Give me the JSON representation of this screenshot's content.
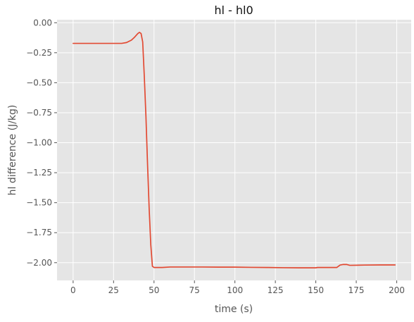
{
  "chart_data": {
    "type": "line",
    "title": "hl - hl0",
    "xlabel": "time (s)",
    "ylabel": "hl difference (J/kg)",
    "xlim": [
      -9.95,
      208.95
    ],
    "ylim": [
      -2.148,
      0.025
    ],
    "xticks": [
      0,
      25,
      50,
      75,
      100,
      125,
      150,
      175,
      200
    ],
    "xtick_labels": [
      "0",
      "25",
      "50",
      "75",
      "100",
      "125",
      "150",
      "175",
      "200"
    ],
    "yticks": [
      0.0,
      -0.25,
      -0.5,
      -0.75,
      -1.0,
      -1.25,
      -1.5,
      -1.75,
      -2.0
    ],
    "ytick_labels": [
      "0.00",
      "−0.25",
      "−0.50",
      "−0.75",
      "−1.00",
      "−1.25",
      "−1.50",
      "−1.75",
      "−2.00"
    ],
    "grid": true,
    "background": "#e5e5e5",
    "grid_color": "#ffffff",
    "series": [
      {
        "color": "#e24a33",
        "x": [
          0,
          10,
          20,
          30,
          33,
          36,
          38,
          40,
          41,
          42,
          43,
          44,
          45,
          46,
          47,
          48,
          49,
          50,
          52,
          55,
          60,
          70,
          80,
          90,
          100,
          110,
          120,
          130,
          140,
          150,
          151,
          160,
          163,
          165,
          167,
          169,
          171,
          180,
          190,
          199
        ],
        "y": [
          -0.172,
          -0.172,
          -0.172,
          -0.172,
          -0.165,
          -0.145,
          -0.12,
          -0.09,
          -0.08,
          -0.09,
          -0.16,
          -0.45,
          -0.78,
          -1.18,
          -1.55,
          -1.85,
          -2.03,
          -2.04,
          -2.04,
          -2.04,
          -2.036,
          -2.036,
          -2.036,
          -2.037,
          -2.037,
          -2.039,
          -2.04,
          -2.042,
          -2.043,
          -2.043,
          -2.04,
          -2.04,
          -2.04,
          -2.02,
          -2.015,
          -2.015,
          -2.022,
          -2.02,
          -2.019,
          -2.019
        ]
      }
    ]
  }
}
